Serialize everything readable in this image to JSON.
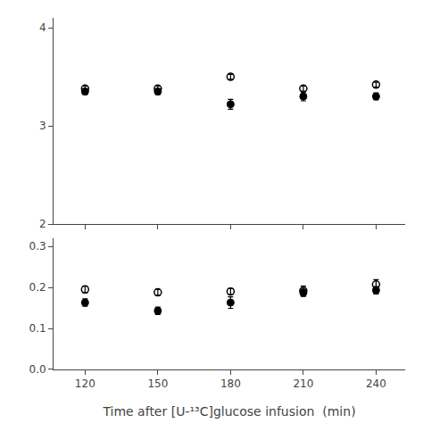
{
  "chart_data": [
    {
      "type": "scatter",
      "x": [
        120,
        150,
        180,
        210,
        240
      ],
      "xlim": [
        107,
        252
      ],
      "xticks": [
        120,
        150,
        180,
        210,
        240
      ],
      "ylim": [
        2.0,
        4.1
      ],
      "yticks": [
        2,
        3,
        4
      ],
      "tick_labels": "y",
      "grid": false,
      "series": [
        {
          "color": "#000000",
          "marker": "circle-open",
          "values": [
            3.38,
            3.38,
            3.5,
            3.38,
            3.42
          ],
          "errors": [
            0.025,
            0.025,
            0.025,
            0.025,
            0.025
          ]
        },
        {
          "color": "#000000",
          "marker": "circle",
          "values": [
            3.35,
            3.35,
            3.22,
            3.3,
            3.3
          ],
          "errors": [
            0.03,
            0.03,
            0.05,
            0.045,
            0.035
          ]
        }
      ]
    },
    {
      "type": "scatter",
      "xlabel": "Time after [U-¹³C]glucose infusion  (min)",
      "x": [
        120,
        150,
        180,
        210,
        240
      ],
      "xlim": [
        107,
        252
      ],
      "xticks": [
        120,
        150,
        180,
        210,
        240
      ],
      "ylim": [
        0.0,
        0.32
      ],
      "yticks": [
        {
          "value": 0.0,
          "label": "0.0"
        },
        0.1,
        0.2,
        0.3
      ],
      "grid": false,
      "series": [
        {
          "color": "#000000",
          "marker": "circle-open",
          "values": [
            0.195,
            0.188,
            0.19,
            0.192,
            0.207
          ],
          "errors": [
            0.008,
            0.007,
            0.007,
            0.011,
            0.012
          ]
        },
        {
          "color": "#000000",
          "marker": "circle",
          "values": [
            0.163,
            0.143,
            0.163,
            0.187,
            0.193
          ],
          "errors": [
            0.009,
            0.009,
            0.014,
            0.009,
            0.009
          ]
        }
      ]
    }
  ]
}
